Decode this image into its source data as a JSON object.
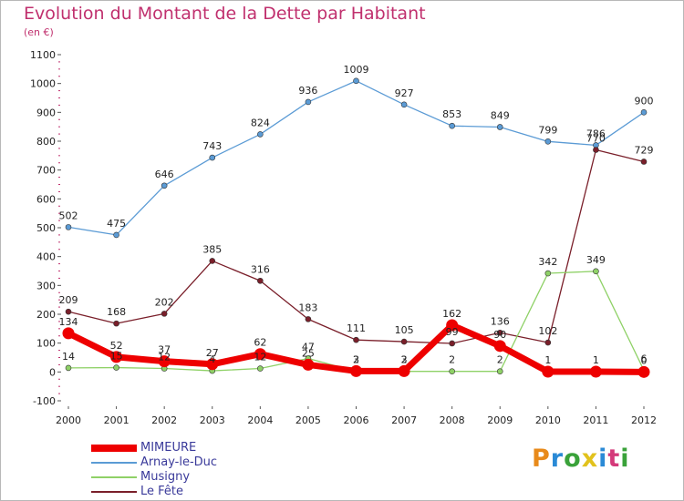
{
  "title": "Evolution du Montant de la Dette par Habitant",
  "subtitle": "(en €)",
  "logo_text": "Proxiti",
  "logo_colors": [
    "#e88a1a",
    "#2a8ad6",
    "#3aa23a",
    "#e2c21c",
    "#2a8ad6",
    "#d43a7a",
    "#3aa23a"
  ],
  "chart_data": {
    "type": "line",
    "x": [
      "2000",
      "2001",
      "2002",
      "2003",
      "2004",
      "2005",
      "2006",
      "2007",
      "2008",
      "2009",
      "2010",
      "2011",
      "2012"
    ],
    "ylim": [
      -100,
      1100
    ],
    "yticks": [
      -100,
      0,
      100,
      200,
      300,
      400,
      500,
      600,
      700,
      800,
      900,
      1000,
      1100
    ],
    "grid": false,
    "legend_position": "bottom-left",
    "series": [
      {
        "name": "MIMEURE",
        "color": "#ee0000",
        "values": [
          134,
          52,
          37,
          27,
          62,
          25,
          3,
          3,
          162,
          90,
          1,
          1,
          0
        ],
        "labels": [
          "134",
          "52",
          "37",
          "27",
          "62",
          "25",
          "3",
          "3",
          "162",
          "90",
          "1",
          "1",
          "0"
        ]
      },
      {
        "name": "Arnay-le-Duc",
        "color": "#5b9bd5",
        "values": [
          502,
          475,
          646,
          743,
          824,
          936,
          1009,
          927,
          853,
          849,
          799,
          786,
          900
        ],
        "labels": [
          "502",
          "475",
          "646",
          "743",
          "824",
          "936",
          "1009",
          "927",
          "853",
          "849",
          "799",
          "786",
          "900"
        ]
      },
      {
        "name": "Musigny",
        "color": "#8fd167",
        "values": [
          14,
          15,
          12,
          4,
          12,
          47,
          2,
          2,
          2,
          2,
          342,
          349,
          6
        ],
        "labels": [
          "14",
          "15",
          "12",
          "4",
          "12",
          "47",
          "2",
          "2",
          "2",
          "2",
          "342",
          "349",
          "6"
        ]
      },
      {
        "name": "Le Fête",
        "color": "#7a1f2a",
        "values": [
          209,
          168,
          202,
          385,
          316,
          183,
          111,
          105,
          99,
          136,
          102,
          770,
          729
        ],
        "labels": [
          "209",
          "168",
          "202",
          "385",
          "316",
          "183",
          "111",
          "105",
          "99",
          "136",
          "102",
          "770",
          "729"
        ]
      }
    ]
  }
}
